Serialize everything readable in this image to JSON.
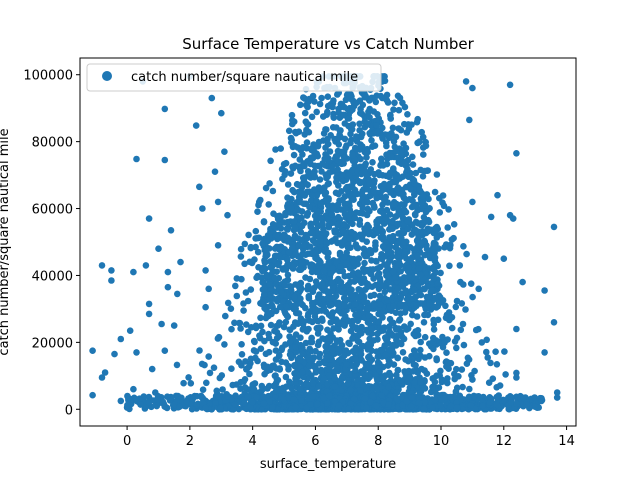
{
  "chart_data": {
    "type": "scatter",
    "title": "Surface Temperature vs Catch Number",
    "xlabel": "surface_temperature",
    "ylabel": "catch number/square nautical mile",
    "xlim": [
      -1.5,
      14.3
    ],
    "ylim": [
      -5000,
      105000
    ],
    "x_ticks": [
      0,
      2,
      4,
      6,
      8,
      10,
      12,
      14
    ],
    "x_tick_labels": [
      "0",
      "2",
      "4",
      "6",
      "8",
      "10",
      "12",
      "14"
    ],
    "y_ticks": [
      0,
      20000,
      40000,
      60000,
      80000,
      100000
    ],
    "y_tick_labels": [
      "0",
      "20000",
      "40000",
      "60000",
      "80000",
      "100000"
    ],
    "grid": false,
    "legend": {
      "placement": "top-left",
      "entries": [
        "catch number/square nautical mile"
      ]
    },
    "series": [
      {
        "name": "catch number/square nautical mile",
        "color": "#1f77b4",
        "points": [
          [
            -1.1,
            17500
          ],
          [
            -1.1,
            4200
          ],
          [
            -0.8,
            43000
          ],
          [
            -0.8,
            9500
          ],
          [
            -0.7,
            11000
          ],
          [
            -0.5,
            41500
          ],
          [
            -0.5,
            38500
          ],
          [
            -0.4,
            16500
          ],
          [
            -0.2,
            2500
          ],
          [
            -0.2,
            21000
          ],
          [
            0.0,
            500
          ],
          [
            0.1,
            23500
          ],
          [
            0.2,
            41000
          ],
          [
            0.3,
            74800
          ],
          [
            0.2,
            6000
          ],
          [
            0.3,
            17000
          ],
          [
            0.5,
            98000
          ],
          [
            0.6,
            43000
          ],
          [
            0.7,
            57000
          ],
          [
            0.7,
            31500
          ],
          [
            0.7,
            28500
          ],
          [
            0.8,
            12000
          ],
          [
            0.9,
            5000
          ],
          [
            1.0,
            48000
          ],
          [
            1.2,
            89800
          ],
          [
            1.2,
            74500
          ],
          [
            1.1,
            25500
          ],
          [
            1.2,
            17500
          ],
          [
            1.4,
            53500
          ],
          [
            1.3,
            41000
          ],
          [
            1.3,
            36500
          ],
          [
            1.5,
            25000
          ],
          [
            1.6,
            34500
          ],
          [
            1.7,
            44000
          ],
          [
            1.8,
            7800
          ],
          [
            2.0,
            99500
          ],
          [
            2.2,
            84800
          ],
          [
            2.3,
            66500
          ],
          [
            2.4,
            60000
          ],
          [
            2.5,
            41500
          ],
          [
            2.5,
            30500
          ],
          [
            2.6,
            36000
          ],
          [
            2.7,
            93000
          ],
          [
            2.8,
            71000
          ],
          [
            2.9,
            62000
          ],
          [
            2.9,
            49000
          ],
          [
            3.0,
            88500
          ],
          [
            3.1,
            77000
          ],
          [
            3.2,
            58000
          ],
          [
            12.2,
            97000
          ],
          [
            12.4,
            76500
          ],
          [
            12.2,
            58000
          ],
          [
            12.3,
            57000
          ],
          [
            12.0,
            45000
          ],
          [
            12.6,
            38000
          ],
          [
            12.4,
            24000
          ],
          [
            12.4,
            9500
          ],
          [
            13.3,
            17000
          ],
          [
            13.3,
            35500
          ],
          [
            13.6,
            54500
          ],
          [
            13.6,
            26000
          ],
          [
            13.7,
            5000
          ],
          [
            13.7,
            3500
          ],
          [
            11.8,
            64000
          ],
          [
            11.6,
            57500
          ],
          [
            11.4,
            45500
          ],
          [
            11.2,
            36000
          ],
          [
            11.3,
            20000
          ],
          [
            11.0,
            62000
          ],
          [
            10.9,
            86500
          ],
          [
            10.8,
            98000
          ],
          [
            11.0,
            96000
          ],
          [
            10.7,
            25500
          ],
          [
            10.6,
            43000
          ]
        ]
      }
    ]
  }
}
